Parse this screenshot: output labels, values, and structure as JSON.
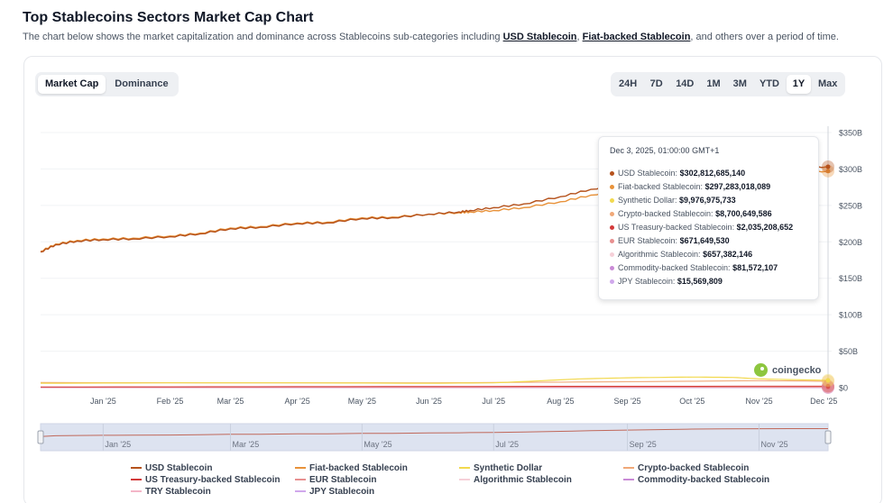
{
  "page": {
    "title": "Top Stablecoins Sectors Market Cap Chart",
    "subtitle_before": "The chart below shows the market capitalization and dominance across Stablecoins sub-categories including ",
    "subtitle_link1": "USD Stablecoin",
    "subtitle_sep": ", ",
    "subtitle_link2": "Fiat-backed Stablecoin",
    "subtitle_after": ", and others over a period of time."
  },
  "toggle": {
    "market_cap": "Market Cap",
    "dominance": "Dominance",
    "active": "market_cap"
  },
  "ranges": [
    {
      "label": "24H"
    },
    {
      "label": "7D"
    },
    {
      "label": "14D"
    },
    {
      "label": "1M"
    },
    {
      "label": "3M"
    },
    {
      "label": "YTD"
    },
    {
      "label": "1Y",
      "active": true
    },
    {
      "label": "Max"
    }
  ],
  "tooltip": {
    "date": "Dec 3, 2025, 01:00:00 GMT+1",
    "rows": [
      {
        "name": "USD Stablecoin:",
        "value": "$302,812,685,140",
        "color": "#b5521c"
      },
      {
        "name": "Fiat-backed Stablecoin:",
        "value": "$297,283,018,089",
        "color": "#e8923a"
      },
      {
        "name": "Synthetic Dollar:",
        "value": "$9,976,975,733",
        "color": "#f2d94e"
      },
      {
        "name": "Crypto-backed Stablecoin:",
        "value": "$8,700,649,586",
        "color": "#f0a878"
      },
      {
        "name": "US Treasury-backed Stablecoin:",
        "value": "$2,035,208,652",
        "color": "#d33a3a"
      },
      {
        "name": "EUR Stablecoin:",
        "value": "$671,649,530",
        "color": "#e89090"
      },
      {
        "name": "Algorithmic Stablecoin:",
        "value": "$657,382,146",
        "color": "#f6d0d8"
      },
      {
        "name": "Commodity-backed Stablecoin:",
        "value": "$81,572,107",
        "color": "#c98ad6"
      },
      {
        "name": "JPY Stablecoin:",
        "value": "$15,569,809",
        "color": "#d0a8ec"
      }
    ]
  },
  "watermark": "coingecko",
  "legend": [
    {
      "label": "USD Stablecoin",
      "color": "#b5521c"
    },
    {
      "label": "Fiat-backed Stablecoin",
      "color": "#e8923a"
    },
    {
      "label": "Synthetic Dollar",
      "color": "#f2d94e"
    },
    {
      "label": "Crypto-backed Stablecoin",
      "color": "#f0a878"
    },
    {
      "label": "US Treasury-backed Stablecoin",
      "color": "#d33a3a"
    },
    {
      "label": "EUR Stablecoin",
      "color": "#e89090"
    },
    {
      "label": "Algorithmic Stablecoin",
      "color": "#f6d0d8"
    },
    {
      "label": "Commodity-backed Stablecoin",
      "color": "#c98ad6"
    },
    {
      "label": "TRY Stablecoin",
      "color": "#f4b6c8"
    },
    {
      "label": "JPY Stablecoin",
      "color": "#d0a8ec"
    }
  ],
  "chart_data": {
    "type": "line",
    "title": "",
    "xlabel": "",
    "ylabel": "",
    "ylim": [
      0,
      350
    ],
    "y_unit": "B",
    "y_ticks": [
      "$0",
      "$50B",
      "$100B",
      "$150B",
      "$200B",
      "$250B",
      "$300B",
      "$350B"
    ],
    "y_tick_values": [
      0,
      50,
      100,
      150,
      200,
      250,
      300,
      350
    ],
    "x_ticks": [
      "Jan '25",
      "Feb '25",
      "Mar '25",
      "Apr '25",
      "May '25",
      "Jun '25",
      "Jul '25",
      "Aug '25",
      "Sep '25",
      "Oct '25",
      "Nov '25",
      "Dec '25"
    ],
    "x_tick_dates": [
      "2025-01-01",
      "2025-02-01",
      "2025-03-01",
      "2025-04-01",
      "2025-05-01",
      "2025-06-01",
      "2025-07-01",
      "2025-08-01",
      "2025-09-01",
      "2025-10-01",
      "2025-11-01",
      "2025-12-01"
    ],
    "navigator_ticks": [
      "Jan '25",
      "Mar '25",
      "May '25",
      "Jul '25",
      "Sep '25",
      "Nov '25"
    ],
    "navigator_tick_dates": [
      "2025-01-01",
      "2025-03-01",
      "2025-05-01",
      "2025-07-01",
      "2025-09-01",
      "2025-11-01"
    ],
    "x_range": [
      "2024-12-03",
      "2025-12-03"
    ],
    "grid": true,
    "legend_position": "bottom",
    "hover_date": "2025-12-03",
    "series": [
      {
        "name": "USD Stablecoin",
        "color": "#b5521c",
        "width": 1.4,
        "x": [
          "2024-12-03",
          "2024-12-10",
          "2024-12-20",
          "2025-01-01",
          "2025-01-15",
          "2025-02-01",
          "2025-02-15",
          "2025-03-01",
          "2025-03-15",
          "2025-04-01",
          "2025-04-15",
          "2025-05-01",
          "2025-05-15",
          "2025-06-01",
          "2025-06-15",
          "2025-06-20",
          "2025-07-01",
          "2025-07-15",
          "2025-08-01",
          "2025-08-15",
          "2025-09-01",
          "2025-09-15",
          "2025-10-01",
          "2025-10-15",
          "2025-11-01",
          "2025-11-15",
          "2025-12-03"
        ],
        "y": [
          186,
          196,
          201,
          203,
          204,
          207,
          211,
          218,
          220,
          225,
          226,
          232,
          233,
          238,
          241,
          243,
          247,
          252,
          262,
          272,
          281,
          288,
          296,
          300,
          302,
          303,
          303
        ]
      },
      {
        "name": "Fiat-backed Stablecoin",
        "color": "#e8923a",
        "width": 1.4,
        "x": [
          "2024-12-03",
          "2024-12-10",
          "2024-12-20",
          "2025-01-01",
          "2025-01-15",
          "2025-02-01",
          "2025-02-15",
          "2025-03-01",
          "2025-03-15",
          "2025-04-01",
          "2025-04-15",
          "2025-05-01",
          "2025-05-15",
          "2025-06-01",
          "2025-06-15",
          "2025-06-20",
          "2025-07-01",
          "2025-07-15",
          "2025-08-01",
          "2025-08-15",
          "2025-09-01",
          "2025-09-15",
          "2025-10-01",
          "2025-10-15",
          "2025-11-01",
          "2025-11-15",
          "2025-12-03"
        ],
        "y": [
          187,
          197,
          202,
          204,
          205,
          208,
          212,
          219,
          221,
          226,
          227,
          233,
          234,
          238,
          240,
          241,
          243,
          247,
          255,
          264,
          273,
          281,
          289,
          294,
          296,
          297,
          297
        ]
      },
      {
        "name": "Synthetic Dollar",
        "color": "#f2d94e",
        "width": 1.2,
        "x": [
          "2024-12-03",
          "2025-02-01",
          "2025-04-01",
          "2025-06-01",
          "2025-07-01",
          "2025-07-20",
          "2025-08-10",
          "2025-09-01",
          "2025-10-01",
          "2025-10-20",
          "2025-11-01",
          "2025-11-15",
          "2025-12-03"
        ],
        "y": [
          6,
          6.5,
          6.5,
          6,
          6.5,
          9,
          12,
          13.5,
          14.5,
          14,
          12,
          11,
          10
        ]
      },
      {
        "name": "Crypto-backed Stablecoin",
        "color": "#f0a878",
        "width": 1.1,
        "x": [
          "2024-12-03",
          "2025-03-01",
          "2025-06-01",
          "2025-09-01",
          "2025-11-01",
          "2025-12-03"
        ],
        "y": [
          7,
          6.5,
          6.5,
          8,
          9.5,
          8.7
        ]
      },
      {
        "name": "US Treasury-backed Stablecoin",
        "color": "#d33a3a",
        "width": 1,
        "x": [
          "2024-12-03",
          "2025-04-01",
          "2025-08-01",
          "2025-12-03"
        ],
        "y": [
          1,
          1.3,
          1.8,
          2
        ]
      },
      {
        "name": "EUR Stablecoin",
        "color": "#e89090",
        "width": 1,
        "x": [
          "2024-12-03",
          "2025-06-01",
          "2025-12-03"
        ],
        "y": [
          0.3,
          0.5,
          0.7
        ]
      },
      {
        "name": "Algorithmic Stablecoin",
        "color": "#f6d0d8",
        "width": 1,
        "x": [
          "2024-12-03",
          "2025-06-01",
          "2025-12-03"
        ],
        "y": [
          0.6,
          0.6,
          0.66
        ]
      },
      {
        "name": "Commodity-backed Stablecoin",
        "color": "#c98ad6",
        "width": 1,
        "x": [
          "2024-12-03",
          "2025-12-03"
        ],
        "y": [
          0.08,
          0.08
        ]
      },
      {
        "name": "TRY Stablecoin",
        "color": "#f4b6c8",
        "width": 1,
        "x": [
          "2024-12-03",
          "2025-12-03"
        ],
        "y": [
          0.02,
          0.02
        ]
      },
      {
        "name": "JPY Stablecoin",
        "color": "#d0a8ec",
        "width": 1,
        "x": [
          "2024-12-03",
          "2025-12-03"
        ],
        "y": [
          0.02,
          0.016
        ]
      }
    ]
  }
}
